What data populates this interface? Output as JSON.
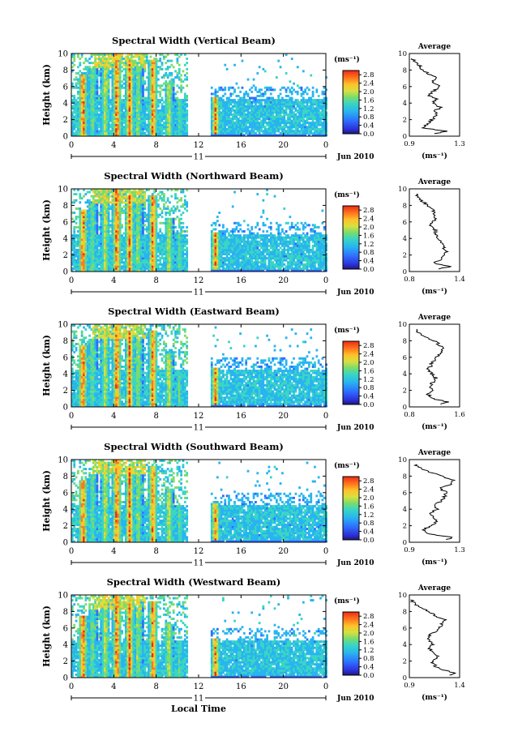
{
  "figure": {
    "xlabel": "Local Time",
    "ylabel": "Height (km)",
    "date_label": "Jun 2010",
    "day_label": "11",
    "colorbar_unit": "(ms⁻¹)",
    "avg_title": "Average",
    "avg_xlabel": "(ms⁻¹)"
  },
  "chart_data": [
    {
      "type": "heatmap",
      "title": "Spectral Width (Vertical Beam)",
      "xlabel": "Local Time",
      "ylabel": "Height (km)",
      "x_ticks": [
        "0",
        "4",
        "8",
        "12",
        "16",
        "20",
        "0"
      ],
      "xlim": [
        0,
        24
      ],
      "y_ticks": [
        "0",
        "2",
        "4",
        "6",
        "8",
        "10"
      ],
      "ylim": [
        0,
        10
      ],
      "colorbar": {
        "unit": "(ms⁻¹)",
        "ticks": [
          "0.0",
          "0.4",
          "0.8",
          "1.2",
          "1.6",
          "2.0",
          "2.4",
          "2.8"
        ],
        "range": [
          0,
          3.0
        ]
      },
      "average_profile": {
        "title": "Average",
        "xlabel": "(ms⁻¹)",
        "x_ticks": [
          "0.9",
          "1.3"
        ],
        "xlim": [
          0.9,
          1.3
        ],
        "y_ticks": [
          "0",
          "2",
          "4",
          "6",
          "8",
          "10"
        ],
        "height": [
          0.3,
          0.6,
          1.0,
          1.5,
          2.0,
          2.5,
          3.0,
          3.5,
          4.0,
          4.5,
          5.0,
          5.5,
          6.0,
          6.5,
          7.0,
          7.5,
          8.0,
          8.5,
          9.0,
          9.5
        ],
        "values": [
          1.1,
          1.2,
          1.0,
          1.05,
          1.08,
          1.12,
          1.1,
          1.15,
          1.08,
          1.12,
          1.05,
          1.1,
          1.14,
          1.08,
          1.12,
          1.06,
          1.0,
          0.98,
          0.94,
          0.92
        ]
      }
    },
    {
      "type": "heatmap",
      "title": "Spectral Width (Northward Beam)",
      "xlabel": "Local Time",
      "ylabel": "Height (km)",
      "x_ticks": [
        "0",
        "4",
        "8",
        "12",
        "16",
        "20",
        "0"
      ],
      "xlim": [
        0,
        24
      ],
      "y_ticks": [
        "0",
        "2",
        "4",
        "6",
        "8",
        "10"
      ],
      "ylim": [
        0,
        10
      ],
      "colorbar": {
        "unit": "(ms⁻¹)",
        "ticks": [
          "0.0",
          "0.4",
          "0.8",
          "1.2",
          "1.6",
          "2.0",
          "2.4",
          "2.8"
        ],
        "range": [
          0,
          3.0
        ]
      },
      "average_profile": {
        "title": "Average",
        "xlabel": "(ms⁻¹)",
        "x_ticks": [
          "0.8",
          "1.4"
        ],
        "xlim": [
          0.8,
          1.4
        ],
        "y_ticks": [
          "0",
          "2",
          "4",
          "6",
          "8",
          "10"
        ],
        "height": [
          0.3,
          0.6,
          1.0,
          1.5,
          2.0,
          2.5,
          3.0,
          3.5,
          4.0,
          4.5,
          5.0,
          5.5,
          6.0,
          6.5,
          7.0,
          7.5,
          8.0,
          8.5,
          9.0,
          9.5
        ],
        "values": [
          1.15,
          1.28,
          1.1,
          1.18,
          1.22,
          1.25,
          1.2,
          1.18,
          1.14,
          1.1,
          1.12,
          1.06,
          1.08,
          1.12,
          1.1,
          1.08,
          1.02,
          0.95,
          0.9,
          0.88
        ]
      }
    },
    {
      "type": "heatmap",
      "title": "Spectral Width (Eastward Beam)",
      "xlabel": "Local Time",
      "ylabel": "Height (km)",
      "x_ticks": [
        "0",
        "4",
        "8",
        "12",
        "16",
        "20",
        "0"
      ],
      "xlim": [
        0,
        24
      ],
      "y_ticks": [
        "0",
        "2",
        "4",
        "6",
        "8",
        "10"
      ],
      "ylim": [
        0,
        10
      ],
      "colorbar": {
        "unit": "(ms⁻¹)",
        "ticks": [
          "0.0",
          "0.4",
          "0.8",
          "1.2",
          "1.6",
          "2.0",
          "2.4",
          "2.8"
        ],
        "range": [
          0,
          3.0
        ]
      },
      "average_profile": {
        "title": "Average",
        "xlabel": "(ms⁻¹)",
        "x_ticks": [
          "0.8",
          "1.6"
        ],
        "xlim": [
          0.8,
          1.6
        ],
        "y_ticks": [
          "0",
          "2",
          "4",
          "6",
          "8",
          "10"
        ],
        "height": [
          0.3,
          0.6,
          1.0,
          1.5,
          2.0,
          2.5,
          3.0,
          3.5,
          4.0,
          4.5,
          5.0,
          5.5,
          6.0,
          6.5,
          7.0,
          7.5,
          8.0,
          8.5,
          9.0,
          9.5
        ],
        "values": [
          1.3,
          1.4,
          1.18,
          1.1,
          1.15,
          1.12,
          1.18,
          1.22,
          1.15,
          1.1,
          1.14,
          1.18,
          1.22,
          1.3,
          1.35,
          1.28,
          1.2,
          1.05,
          0.95,
          0.9
        ]
      }
    },
    {
      "type": "heatmap",
      "title": "Spectral Width (Southward Beam)",
      "xlabel": "Local Time",
      "ylabel": "Height (km)",
      "x_ticks": [
        "0",
        "4",
        "8",
        "12",
        "16",
        "20",
        "0"
      ],
      "xlim": [
        0,
        24
      ],
      "y_ticks": [
        "0",
        "2",
        "4",
        "6",
        "8",
        "10"
      ],
      "ylim": [
        0,
        10
      ],
      "colorbar": {
        "unit": "(ms⁻¹)",
        "ticks": [
          "0.0",
          "0.4",
          "0.8",
          "1.2",
          "1.6",
          "2.0",
          "2.4",
          "2.8"
        ],
        "range": [
          0,
          3.0
        ]
      },
      "average_profile": {
        "title": "Average",
        "xlabel": "(ms⁻¹)",
        "x_ticks": [
          "0.9",
          "1.3"
        ],
        "xlim": [
          0.9,
          1.3
        ],
        "y_ticks": [
          "0",
          "2",
          "4",
          "6",
          "8",
          "10"
        ],
        "height": [
          0.3,
          0.6,
          1.0,
          1.5,
          2.0,
          2.5,
          3.0,
          3.5,
          4.0,
          4.5,
          5.0,
          5.5,
          6.0,
          6.5,
          7.0,
          7.5,
          8.0,
          8.5,
          9.0,
          9.5
        ],
        "values": [
          1.2,
          1.25,
          1.05,
          1.0,
          1.08,
          1.12,
          1.1,
          1.06,
          1.12,
          1.1,
          1.15,
          1.18,
          1.2,
          1.14,
          1.22,
          1.25,
          1.16,
          1.05,
          0.98,
          0.94
        ]
      }
    },
    {
      "type": "heatmap",
      "title": "Spectral Width (Westward Beam)",
      "xlabel": "Local Time",
      "ylabel": "Height (km)",
      "x_ticks": [
        "0",
        "4",
        "8",
        "12",
        "16",
        "20",
        "0"
      ],
      "xlim": [
        0,
        24
      ],
      "y_ticks": [
        "0",
        "2",
        "4",
        "6",
        "8",
        "10"
      ],
      "ylim": [
        0,
        10
      ],
      "colorbar": {
        "unit": "(ms⁻¹)",
        "ticks": [
          "0.0",
          "0.4",
          "0.8",
          "1.2",
          "1.6",
          "2.0",
          "2.4",
          "2.8"
        ],
        "range": [
          0,
          3.0
        ]
      },
      "average_profile": {
        "title": "Average",
        "xlabel": "(ms⁻¹)",
        "x_ticks": [
          "0.9",
          "1.4"
        ],
        "xlim": [
          0.9,
          1.4
        ],
        "y_ticks": [
          "0",
          "2",
          "4",
          "6",
          "8",
          "10"
        ],
        "height": [
          0.3,
          0.6,
          1.0,
          1.5,
          2.0,
          2.5,
          3.0,
          3.5,
          4.0,
          4.5,
          5.0,
          5.5,
          6.0,
          6.5,
          7.0,
          7.5,
          8.0,
          8.5,
          9.0,
          9.5
        ],
        "values": [
          1.3,
          1.35,
          1.2,
          1.15,
          1.12,
          1.18,
          1.15,
          1.1,
          1.14,
          1.1,
          1.08,
          1.15,
          1.2,
          1.22,
          1.25,
          1.15,
          1.1,
          1.0,
          0.95,
          0.92
        ]
      }
    }
  ]
}
